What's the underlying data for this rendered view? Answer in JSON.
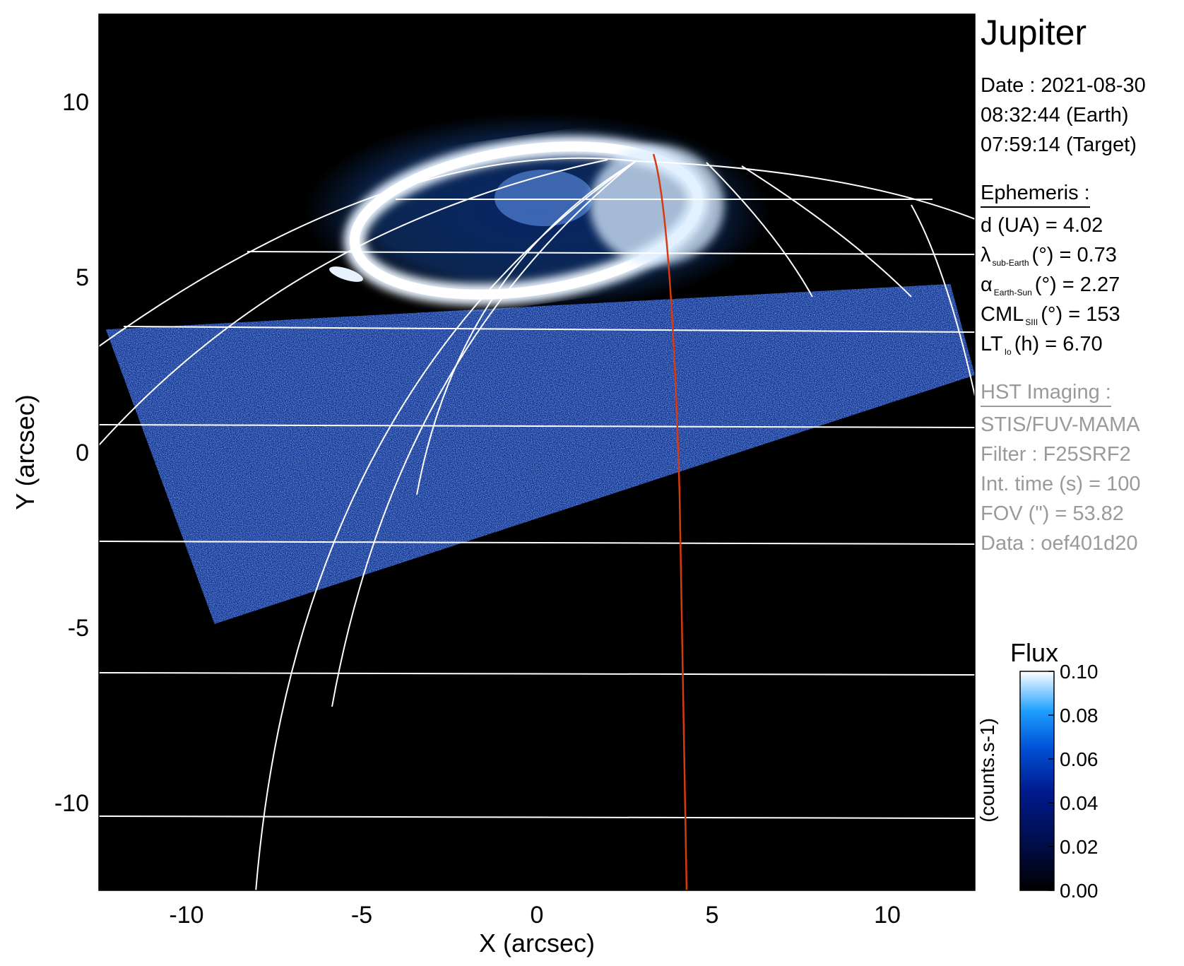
{
  "sidebar": {
    "title": "Jupiter",
    "date_line": "Date : 2021-08-30",
    "earth_time": "08:32:44 (Earth)",
    "target_time": "07:59:14 (Target)",
    "ephemeris_heading": "Ephemeris :",
    "distance": "d (UA)    = 4.02",
    "lambda_symbol": "λ",
    "lambda_sub": "sub-Earth",
    "lambda_rest": "(°) = 0.73",
    "alpha_symbol": "α",
    "alpha_sub": "Earth-Sun",
    "alpha_rest": "(°) = 2.27",
    "cml_symbol": "CML",
    "cml_sub": "SIII",
    "cml_rest": "(°) = 153",
    "lt_symbol": "LT",
    "lt_sub": "Io",
    "lt_rest": "(h) = 6.70",
    "hst_heading": "HST Imaging :",
    "instrument": "STIS/FUV-MAMA",
    "filter": "Filter : F25SRF2",
    "int_time": "Int. time (s) = 100",
    "fov": "FOV (\") = 53.82",
    "data_id": "Data : oef401d20"
  },
  "colorbar": {
    "title": "Flux",
    "unit_label": "(counts.s-1)",
    "ticks": [
      "0.10",
      "0.08",
      "0.06",
      "0.04",
      "0.02",
      "0.00"
    ],
    "range": [
      0.0,
      0.1
    ],
    "colors": [
      "#000000",
      "#000c45",
      "#001a8e",
      "#0050d6",
      "#1ea0ff",
      "#ffffff"
    ]
  },
  "chart_data": {
    "type": "heatmap",
    "title": "",
    "xlabel": "X (arcsec)",
    "ylabel": "Y (arcsec)",
    "xlim": [
      -12.5,
      12.5
    ],
    "ylim": [
      -12.5,
      12.5
    ],
    "xticks": [
      "-10",
      "-5",
      "0",
      "5",
      "10"
    ],
    "yticks": [
      "10",
      "5",
      "0",
      "-5",
      "-10"
    ],
    "xtick_values": [
      -10,
      -5,
      0,
      5,
      10
    ],
    "ytick_values": [
      10,
      5,
      0,
      -5,
      -10
    ],
    "image_footprint": [
      [
        -12.3,
        3.5
      ],
      [
        11.8,
        4.8
      ],
      [
        12.5,
        2.2
      ],
      [
        -9.2,
        -4.9
      ]
    ],
    "auroral_oval_center": [
      -0.9,
      7.2
    ],
    "grid": true,
    "colormap": "black-blue-white",
    "overlay_line_color": "#d63a10",
    "grid_line_color": "#ffffff"
  }
}
